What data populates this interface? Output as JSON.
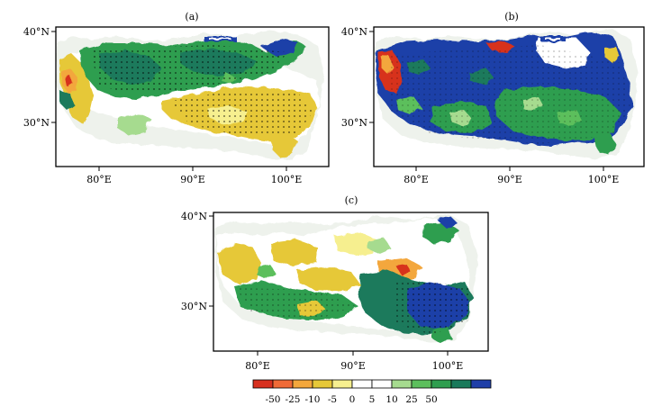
{
  "panels": [
    {
      "label": "(a)",
      "lat_ticks": [
        "40°N",
        "30°N"
      ],
      "lon_ticks": [
        "80°E",
        "90°E",
        "100°E"
      ]
    },
    {
      "label": "(b)",
      "lat_ticks": [
        "40°N",
        "30°N"
      ],
      "lon_ticks": [
        "80°E",
        "90°E",
        "100°E"
      ]
    },
    {
      "label": "(c)",
      "lat_ticks": [
        "40°N",
        "30°N"
      ],
      "lon_ticks": [
        "80°E",
        "90°E",
        "100°E"
      ]
    }
  ],
  "colorbar": {
    "labels": [
      "-50",
      "-25",
      "-10",
      "-5",
      "0",
      "5",
      "10",
      "25",
      "50"
    ],
    "colors": [
      "#d7301f",
      "#ef6a37",
      "#f3a73c",
      "#e6c838",
      "#f6ef8f",
      "#ffffff",
      "#ffffff",
      "#a6db8f",
      "#5cbf5c",
      "#2f9e4f",
      "#1a7a5b",
      "#1f3fa8"
    ]
  },
  "map_colors": {
    "blue": "#1f3fa8",
    "dark_green": "#1a7a5b",
    "green": "#2f9e4f",
    "light_green": "#5cbf5c",
    "pale_green": "#a6db8f",
    "yellow": "#e6c838",
    "light_yellow": "#f6ef8f",
    "orange": "#f3a73c",
    "red": "#d7301f",
    "background_shade": "#eef2ec"
  }
}
